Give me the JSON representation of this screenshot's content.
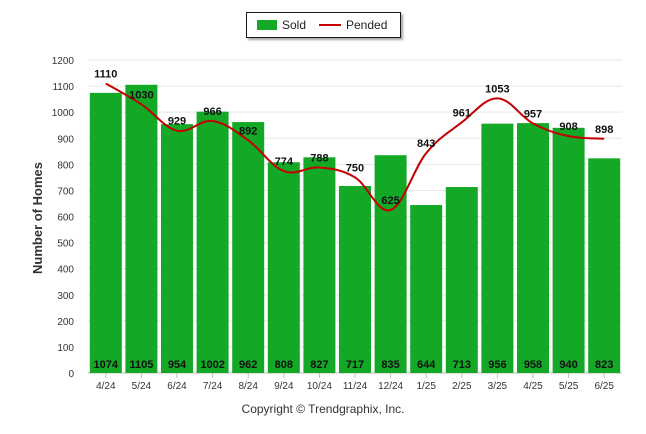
{
  "chart_data": {
    "type": "bar",
    "title": "",
    "xlabel": "",
    "ylabel": "Number of Homes",
    "ylim": [
      0,
      1200
    ],
    "yticks": [
      0,
      100,
      200,
      300,
      400,
      500,
      600,
      700,
      800,
      900,
      1000,
      1100,
      1200
    ],
    "grid": true,
    "legend_position": "top-center",
    "categories": [
      "4/24",
      "5/24",
      "6/24",
      "7/24",
      "8/24",
      "9/24",
      "10/24",
      "11/24",
      "12/24",
      "1/25",
      "2/25",
      "3/25",
      "4/25",
      "5/25",
      "6/25"
    ],
    "series": [
      {
        "name": "Sold",
        "kind": "bar",
        "color": "#13a826",
        "values": [
          1074,
          1105,
          954,
          1002,
          962,
          808,
          827,
          717,
          835,
          644,
          713,
          956,
          958,
          940,
          823
        ]
      },
      {
        "name": "Pended",
        "kind": "line",
        "color": "#c40000",
        "values": [
          1110,
          1030,
          929,
          966,
          892,
          774,
          788,
          750,
          625,
          843,
          961,
          1053,
          957,
          908,
          898
        ]
      }
    ]
  },
  "footer": {
    "copyright": "Copyright © Trendgraphix, Inc."
  }
}
